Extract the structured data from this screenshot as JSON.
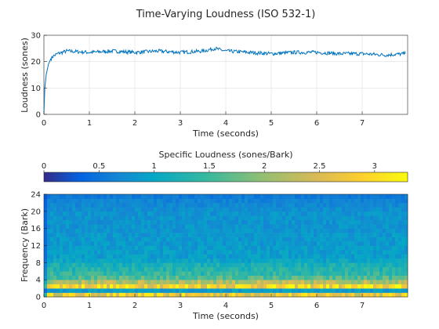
{
  "chart_data": [
    {
      "type": "line",
      "title": "Time-Varying Loudness (ISO 532-1)",
      "xlabel": "Time (seconds)",
      "ylabel": "Loudness (sones)",
      "xlim": [
        0,
        8
      ],
      "ylim": [
        0,
        30
      ],
      "xticks": [
        "0",
        "1",
        "2",
        "3",
        "4",
        "5",
        "6",
        "7"
      ],
      "yticks": [
        "0",
        "10",
        "20",
        "30"
      ],
      "grid": true,
      "series_color": "#0072bd",
      "x": [
        0,
        0.02,
        0.05,
        0.1,
        0.15,
        0.2,
        0.3,
        0.4,
        0.5,
        1,
        1.5,
        2,
        2.5,
        3,
        3.5,
        3.75,
        4,
        4.5,
        5,
        5.5,
        6,
        6.5,
        7,
        7.5,
        7.95
      ],
      "y": [
        0,
        10,
        15,
        19,
        21,
        22,
        23,
        23.5,
        24,
        23.5,
        24,
        23.5,
        24,
        23.5,
        24,
        25,
        24,
        23.5,
        23,
        23.5,
        23.5,
        23,
        23,
        22.5,
        23
      ]
    },
    {
      "type": "heatmap",
      "title": "",
      "xlabel": "Time (seconds)",
      "ylabel": "Frequency (Bark)",
      "xlim": [
        0,
        8
      ],
      "ylim": [
        0,
        24
      ],
      "xticks": [
        "0",
        "1",
        "2",
        "3",
        "4",
        "5",
        "6",
        "7"
      ],
      "yticks": [
        "0",
        "4",
        "8",
        "12",
        "16",
        "20",
        "24"
      ],
      "colorbar": {
        "label": "Specific Loudness (sones/Bark)",
        "ticks": [
          "0",
          "0.5",
          "1",
          "1.5",
          "2",
          "2.5",
          "3"
        ],
        "range": [
          0,
          3.3
        ],
        "colormap": "parula",
        "placement": "top"
      },
      "bark": [
        0.5,
        1.5,
        2.5,
        3.5,
        4.5,
        5.5,
        6.5,
        7.5,
        8.5,
        9.5,
        10.5,
        11.5,
        12.5,
        13.5,
        14.5,
        15.5,
        16.5,
        17.5,
        18.5,
        19.5,
        20.5,
        21.5,
        22.5,
        23.5
      ],
      "mean_specific_loudness": [
        2.7,
        0.9,
        2.9,
        2.2,
        1.6,
        1.4,
        1.3,
        1.2,
        1.0,
        0.9,
        0.9,
        0.9,
        0.85,
        0.85,
        0.85,
        0.8,
        0.8,
        0.8,
        0.8,
        0.8,
        0.75,
        0.7,
        0.65,
        0.55
      ]
    }
  ]
}
